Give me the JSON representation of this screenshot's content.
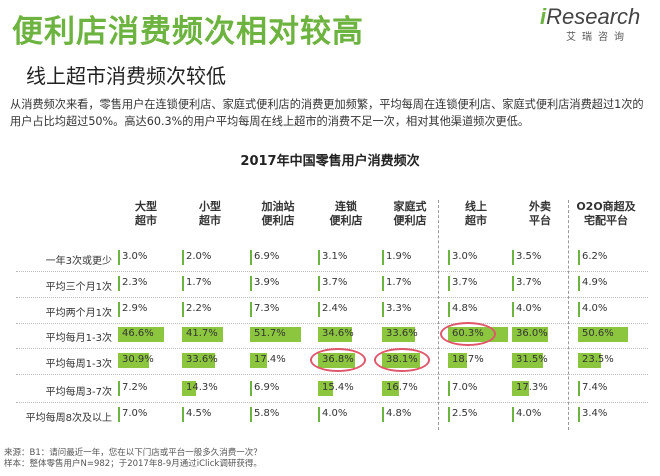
{
  "header": {
    "title": "便利店消费频次相对较高",
    "subtitle": "线上超市消费频次较低",
    "logo_text": "iResearch",
    "logo_sub": "艾瑞咨询",
    "description": "从消费频次来看，零售用户在连锁便利店、家庭式便利店的消费更加频繁，平均每周在连锁便利店、家庭式便利店消费超过1次的用户占比均超过50%。高达60.3%的用户平均每周在线上超市的消费不足一次，相对其他渠道频次更低。"
  },
  "chart_data": {
    "type": "table",
    "title": "2017年中国零售用户消费频次",
    "columns": [
      "大型\n超市",
      "小型\n超市",
      "加油站\n便利店",
      "连锁\n便利店",
      "家庭式\n便利店",
      "线上\n超市",
      "外卖\n平台",
      "O2O商超及\n宅配平台"
    ],
    "rows": [
      "一年3次或更少",
      "平均三个月1次",
      "平均两个月1次",
      "平均每月1-3次",
      "平均每周1-3次",
      "平均每周3-7次",
      "平均每周8次及以上"
    ],
    "values": [
      [
        3.0,
        2.0,
        6.9,
        3.1,
        1.9,
        3.0,
        3.5,
        6.2
      ],
      [
        2.3,
        1.7,
        3.9,
        3.7,
        1.7,
        3.7,
        3.7,
        4.9
      ],
      [
        2.9,
        2.2,
        7.3,
        2.4,
        3.3,
        4.8,
        4.0,
        4.0
      ],
      [
        46.6,
        41.7,
        51.7,
        34.6,
        33.6,
        60.3,
        36.0,
        50.6
      ],
      [
        30.9,
        33.6,
        17.4,
        36.8,
        38.1,
        18.7,
        31.5,
        23.5
      ],
      [
        7.2,
        14.3,
        6.9,
        15.4,
        16.7,
        7.0,
        17.3,
        7.4
      ],
      [
        7.0,
        4.5,
        5.8,
        4.0,
        4.8,
        2.5,
        4.0,
        3.4
      ]
    ],
    "unit": "%",
    "highlight_color": "#8cc63f",
    "circle_color": "#e0576b",
    "highlighted_cells": [
      [
        3,
        5
      ],
      [
        4,
        3
      ],
      [
        4,
        4
      ]
    ]
  },
  "footnote": {
    "line1": "来源：B1：请问最近一年，您在以下门店或平台一般多久消费一次？",
    "line2": "样本：整体零售用户N=982；于2017年8-9月通过iClick调研获得。"
  }
}
